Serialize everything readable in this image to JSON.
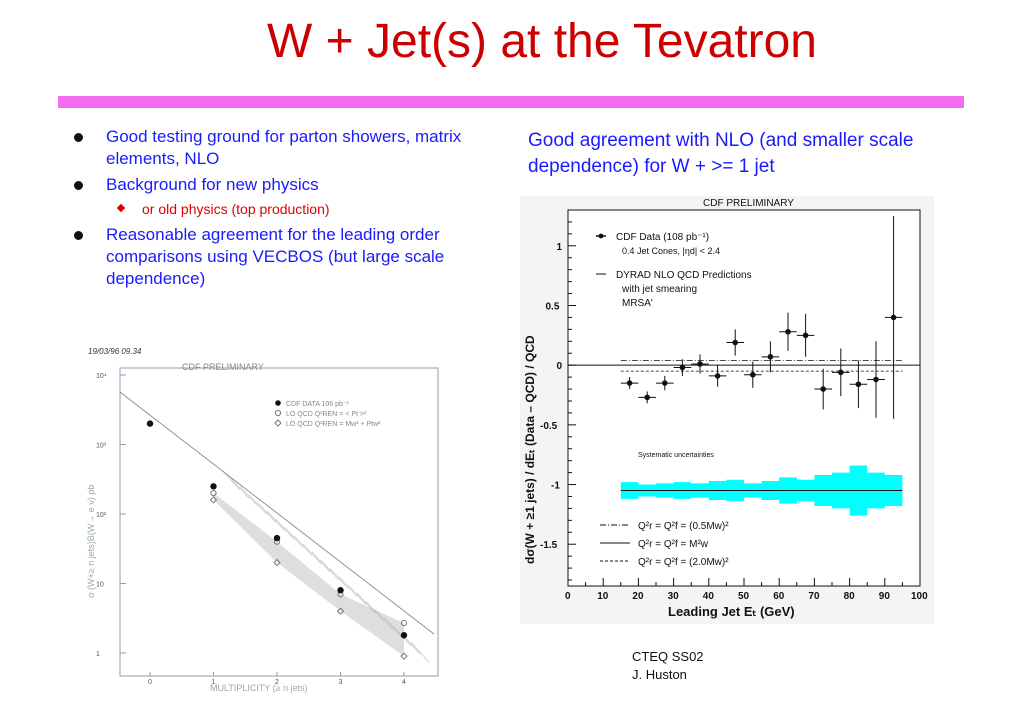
{
  "slide": {
    "title": "W + Jet(s) at the Tevatron",
    "bullets": [
      {
        "text": "Good testing ground for parton showers, matrix elements, NLO",
        "sub": []
      },
      {
        "text": "Background for new physics",
        "sub": [
          "or old physics (top production)"
        ]
      },
      {
        "text": "Reasonable agreement for the leading order comparisons using VECBOS (but large scale dependence)",
        "sub": []
      }
    ],
    "right_caption": "Good agreement with NLO (and smaller scale dependence) for W + >= 1 jet",
    "footer": {
      "line1": "CTEQ SS02",
      "line2": "J. Huston"
    }
  },
  "colors": {
    "title": "#cc0000",
    "text": "#1a1aff",
    "sub": "#e00000",
    "divider": "#f56cf0",
    "band": "#00ffff"
  },
  "chart_data": [
    {
      "type": "scatter",
      "stamp": "19/03/96   09.34",
      "title": "CDF PRELIMINARY",
      "xlabel": "MULTIPLICITY (≥ n jets)",
      "ylabel": "σ (W+≥ n jets)B(W→ e ν) pb",
      "yscale": "log",
      "xticks": [
        "0",
        "1",
        "2",
        "3",
        "4"
      ],
      "yticks": [
        "1",
        "10",
        "10²",
        "10³",
        "10⁴"
      ],
      "legend": [
        "CDF DATA 106 pb⁻¹",
        "LO QCD   Q²REN = < Pt >²",
        "LO QCD   Q²REN = Mw² + Ptw²"
      ],
      "series": [
        {
          "name": "CDF DATA 106 pb⁻¹",
          "x": [
            0,
            1,
            2,
            3,
            4
          ],
          "y": [
            2000,
            250,
            45,
            8,
            1.8
          ]
        },
        {
          "name": "LO QCD   Q²REN = < Pt >²",
          "x": [
            1,
            2,
            3,
            4
          ],
          "y": [
            200,
            40,
            7,
            2.7
          ]
        },
        {
          "name": "LO QCD   Q²REN = Mw² + Ptw²",
          "x": [
            1,
            2,
            3,
            4
          ],
          "y": [
            160,
            20,
            4,
            0.9
          ]
        }
      ]
    },
    {
      "type": "scatter",
      "title": "CDF PRELIMINARY",
      "xlabel": "Leading Jet Eₜ (GeV)",
      "ylabel": "dσ(W + ≥1 jets) / dEₜ   (Data – QCD) / QCD",
      "xlim": [
        0,
        100
      ],
      "ylim": [
        -1.85,
        1.3
      ],
      "xticks": [
        "0",
        "10",
        "20",
        "30",
        "40",
        "50",
        "60",
        "70",
        "80",
        "90",
        "100"
      ],
      "yticks": [
        "1",
        "0.5",
        "0",
        "-0.5",
        "-1",
        "-1.5"
      ],
      "legend": [
        "CDF Data (108 pb⁻¹)",
        "0.4 Jet Cones, |ηd| < 2.4",
        "DYRAD NLO QCD Predictions",
        "with jet smearing",
        "MRSA'"
      ],
      "band_label": "Systematic uncertainties",
      "scale_legend": [
        "Q²r = Q²f = (0.5Mw)²",
        "Q²r = Q²f = M²w",
        "Q²r = Q²f = (2.0Mw)²"
      ],
      "series": [
        {
          "name": "CDF Data (108 pb⁻¹)",
          "x": [
            17.5,
            22.5,
            27.5,
            32.5,
            37.5,
            42.5,
            47.5,
            52.5,
            57.5,
            62.5,
            67.5,
            72.5,
            77.5,
            82.5,
            87.5,
            92.5
          ],
          "y": [
            -0.15,
            -0.27,
            -0.15,
            -0.02,
            0.01,
            -0.09,
            0.19,
            -0.08,
            0.07,
            0.28,
            0.25,
            -0.2,
            -0.06,
            -0.16,
            -0.12,
            0.4
          ],
          "yerr": [
            0.05,
            0.05,
            0.06,
            0.07,
            0.08,
            0.09,
            0.11,
            0.11,
            0.13,
            0.16,
            0.18,
            0.17,
            0.2,
            0.2,
            0.32,
            0.85
          ]
        },
        {
          "name": "Q²r = Q²f = (0.5Mw)²",
          "x": [
            15,
            95
          ],
          "y": [
            0.04,
            0.04
          ]
        },
        {
          "name": "Q²r = Q²f = (2.0Mw)²",
          "x": [
            15,
            95
          ],
          "y": [
            -0.05,
            -0.05
          ]
        }
      ],
      "band": {
        "center": -1.05,
        "x": [
          17.5,
          22.5,
          27.5,
          32.5,
          37.5,
          42.5,
          47.5,
          52.5,
          57.5,
          62.5,
          67.5,
          72.5,
          77.5,
          82.5,
          87.5,
          92.5
        ],
        "half_width": [
          0.07,
          0.05,
          0.06,
          0.07,
          0.06,
          0.08,
          0.09,
          0.06,
          0.08,
          0.11,
          0.09,
          0.13,
          0.15,
          0.21,
          0.15,
          0.13
        ]
      }
    }
  ]
}
